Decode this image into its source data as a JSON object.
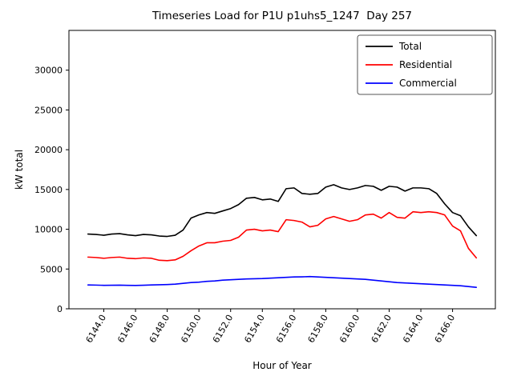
{
  "chart_data": {
    "type": "line",
    "title": "Timeseries Load for P1U p1uhs5_1247  Day 257",
    "xlabel": "Hour of Year",
    "ylabel": "kW total",
    "grid": false,
    "legend_position": "upper right",
    "xlim": [
      6141.8,
      6168.7
    ],
    "ylim": [
      0,
      35000
    ],
    "xticks": [
      6144,
      6146,
      6148,
      6150,
      6152,
      6154,
      6156,
      6158,
      6160,
      6162,
      6164,
      6166
    ],
    "xtick_labels": [
      "6144.0",
      "6146.0",
      "6148.0",
      "6150.0",
      "6152.0",
      "6154.0",
      "6156.0",
      "6158.0",
      "6160.0",
      "6162.0",
      "6164.0",
      "6166.0"
    ],
    "yticks": [
      0,
      5000,
      10000,
      15000,
      20000,
      25000,
      30000
    ],
    "ytick_labels": [
      "0",
      "5000",
      "10000",
      "15000",
      "20000",
      "25000",
      "30000"
    ],
    "x": [
      6143.0,
      6143.5,
      6144.0,
      6144.5,
      6145.0,
      6145.5,
      6146.0,
      6146.5,
      6147.0,
      6147.5,
      6148.0,
      6148.5,
      6149.0,
      6149.5,
      6150.0,
      6150.5,
      6151.0,
      6151.5,
      6152.0,
      6152.5,
      6153.0,
      6153.5,
      6154.0,
      6154.5,
      6155.0,
      6155.5,
      6156.0,
      6156.5,
      6157.0,
      6157.5,
      6158.0,
      6158.5,
      6159.0,
      6159.5,
      6160.0,
      6160.5,
      6161.0,
      6161.5,
      6162.0,
      6162.5,
      6163.0,
      6163.5,
      6164.0,
      6164.5,
      6165.0,
      6165.5,
      6166.0,
      6166.5,
      6167.0,
      6167.5
    ],
    "series": [
      {
        "name": "Total",
        "color": "#000000",
        "values": [
          9400,
          9350,
          9250,
          9400,
          9450,
          9300,
          9200,
          9350,
          9300,
          9150,
          9100,
          9250,
          9900,
          11400,
          11800,
          12100,
          12000,
          12300,
          12600,
          13100,
          13900,
          14000,
          13700,
          13800,
          13500,
          15100,
          15200,
          14500,
          14400,
          14500,
          15300,
          15600,
          15200,
          15000,
          15200,
          15500,
          15400,
          14900,
          15400,
          15300,
          14800,
          15200,
          15200,
          15100,
          14500,
          13200,
          12100,
          11700,
          10300,
          9200
        ]
      },
      {
        "name": "Residential",
        "color": "#ff0000",
        "values": [
          6500,
          6450,
          6350,
          6450,
          6500,
          6350,
          6300,
          6400,
          6350,
          6100,
          6050,
          6150,
          6600,
          7300,
          7900,
          8300,
          8300,
          8500,
          8600,
          9000,
          9900,
          10000,
          9800,
          9900,
          9700,
          11200,
          11100,
          10900,
          10300,
          10500,
          11300,
          11600,
          11300,
          11000,
          11200,
          11800,
          11900,
          11400,
          12100,
          11500,
          11400,
          12200,
          12100,
          12200,
          12100,
          11800,
          10400,
          9800,
          7600,
          6400
        ]
      },
      {
        "name": "Commercial",
        "color": "#0000ff",
        "values": [
          3000,
          2980,
          2950,
          2960,
          2970,
          2950,
          2940,
          2960,
          3000,
          3020,
          3050,
          3100,
          3200,
          3300,
          3350,
          3450,
          3500,
          3600,
          3650,
          3700,
          3750,
          3780,
          3800,
          3850,
          3900,
          3950,
          4000,
          4020,
          4050,
          4000,
          3950,
          3900,
          3850,
          3800,
          3750,
          3700,
          3600,
          3500,
          3400,
          3300,
          3250,
          3200,
          3150,
          3100,
          3050,
          3000,
          2950,
          2900,
          2800,
          2700
        ]
      }
    ]
  }
}
